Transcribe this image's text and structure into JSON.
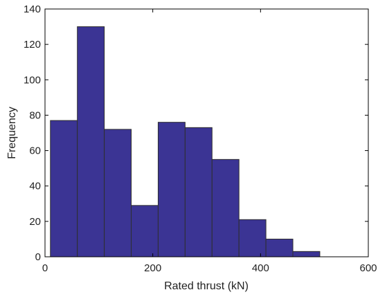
{
  "chart_data": {
    "type": "bar",
    "variant": "histogram",
    "title": "",
    "xlabel": "Rated thrust (kN)",
    "ylabel": "Frequency",
    "xlim": [
      0,
      600
    ],
    "ylim": [
      0,
      140
    ],
    "xticks": [
      0,
      200,
      400,
      600
    ],
    "yticks": [
      0,
      20,
      40,
      60,
      80,
      100,
      120,
      140
    ],
    "bins": [
      {
        "start": 10,
        "end": 60,
        "value": 77
      },
      {
        "start": 60,
        "end": 110,
        "value": 130
      },
      {
        "start": 110,
        "end": 160,
        "value": 72
      },
      {
        "start": 160,
        "end": 210,
        "value": 29
      },
      {
        "start": 210,
        "end": 260,
        "value": 76
      },
      {
        "start": 260,
        "end": 310,
        "value": 73
      },
      {
        "start": 310,
        "end": 360,
        "value": 55
      },
      {
        "start": 360,
        "end": 410,
        "value": 21
      },
      {
        "start": 410,
        "end": 460,
        "value": 10
      },
      {
        "start": 460,
        "end": 510,
        "value": 3
      }
    ],
    "bar_color": "#3b3494",
    "edge_color": "#2e2e2e",
    "grid": false,
    "legend": "none"
  }
}
